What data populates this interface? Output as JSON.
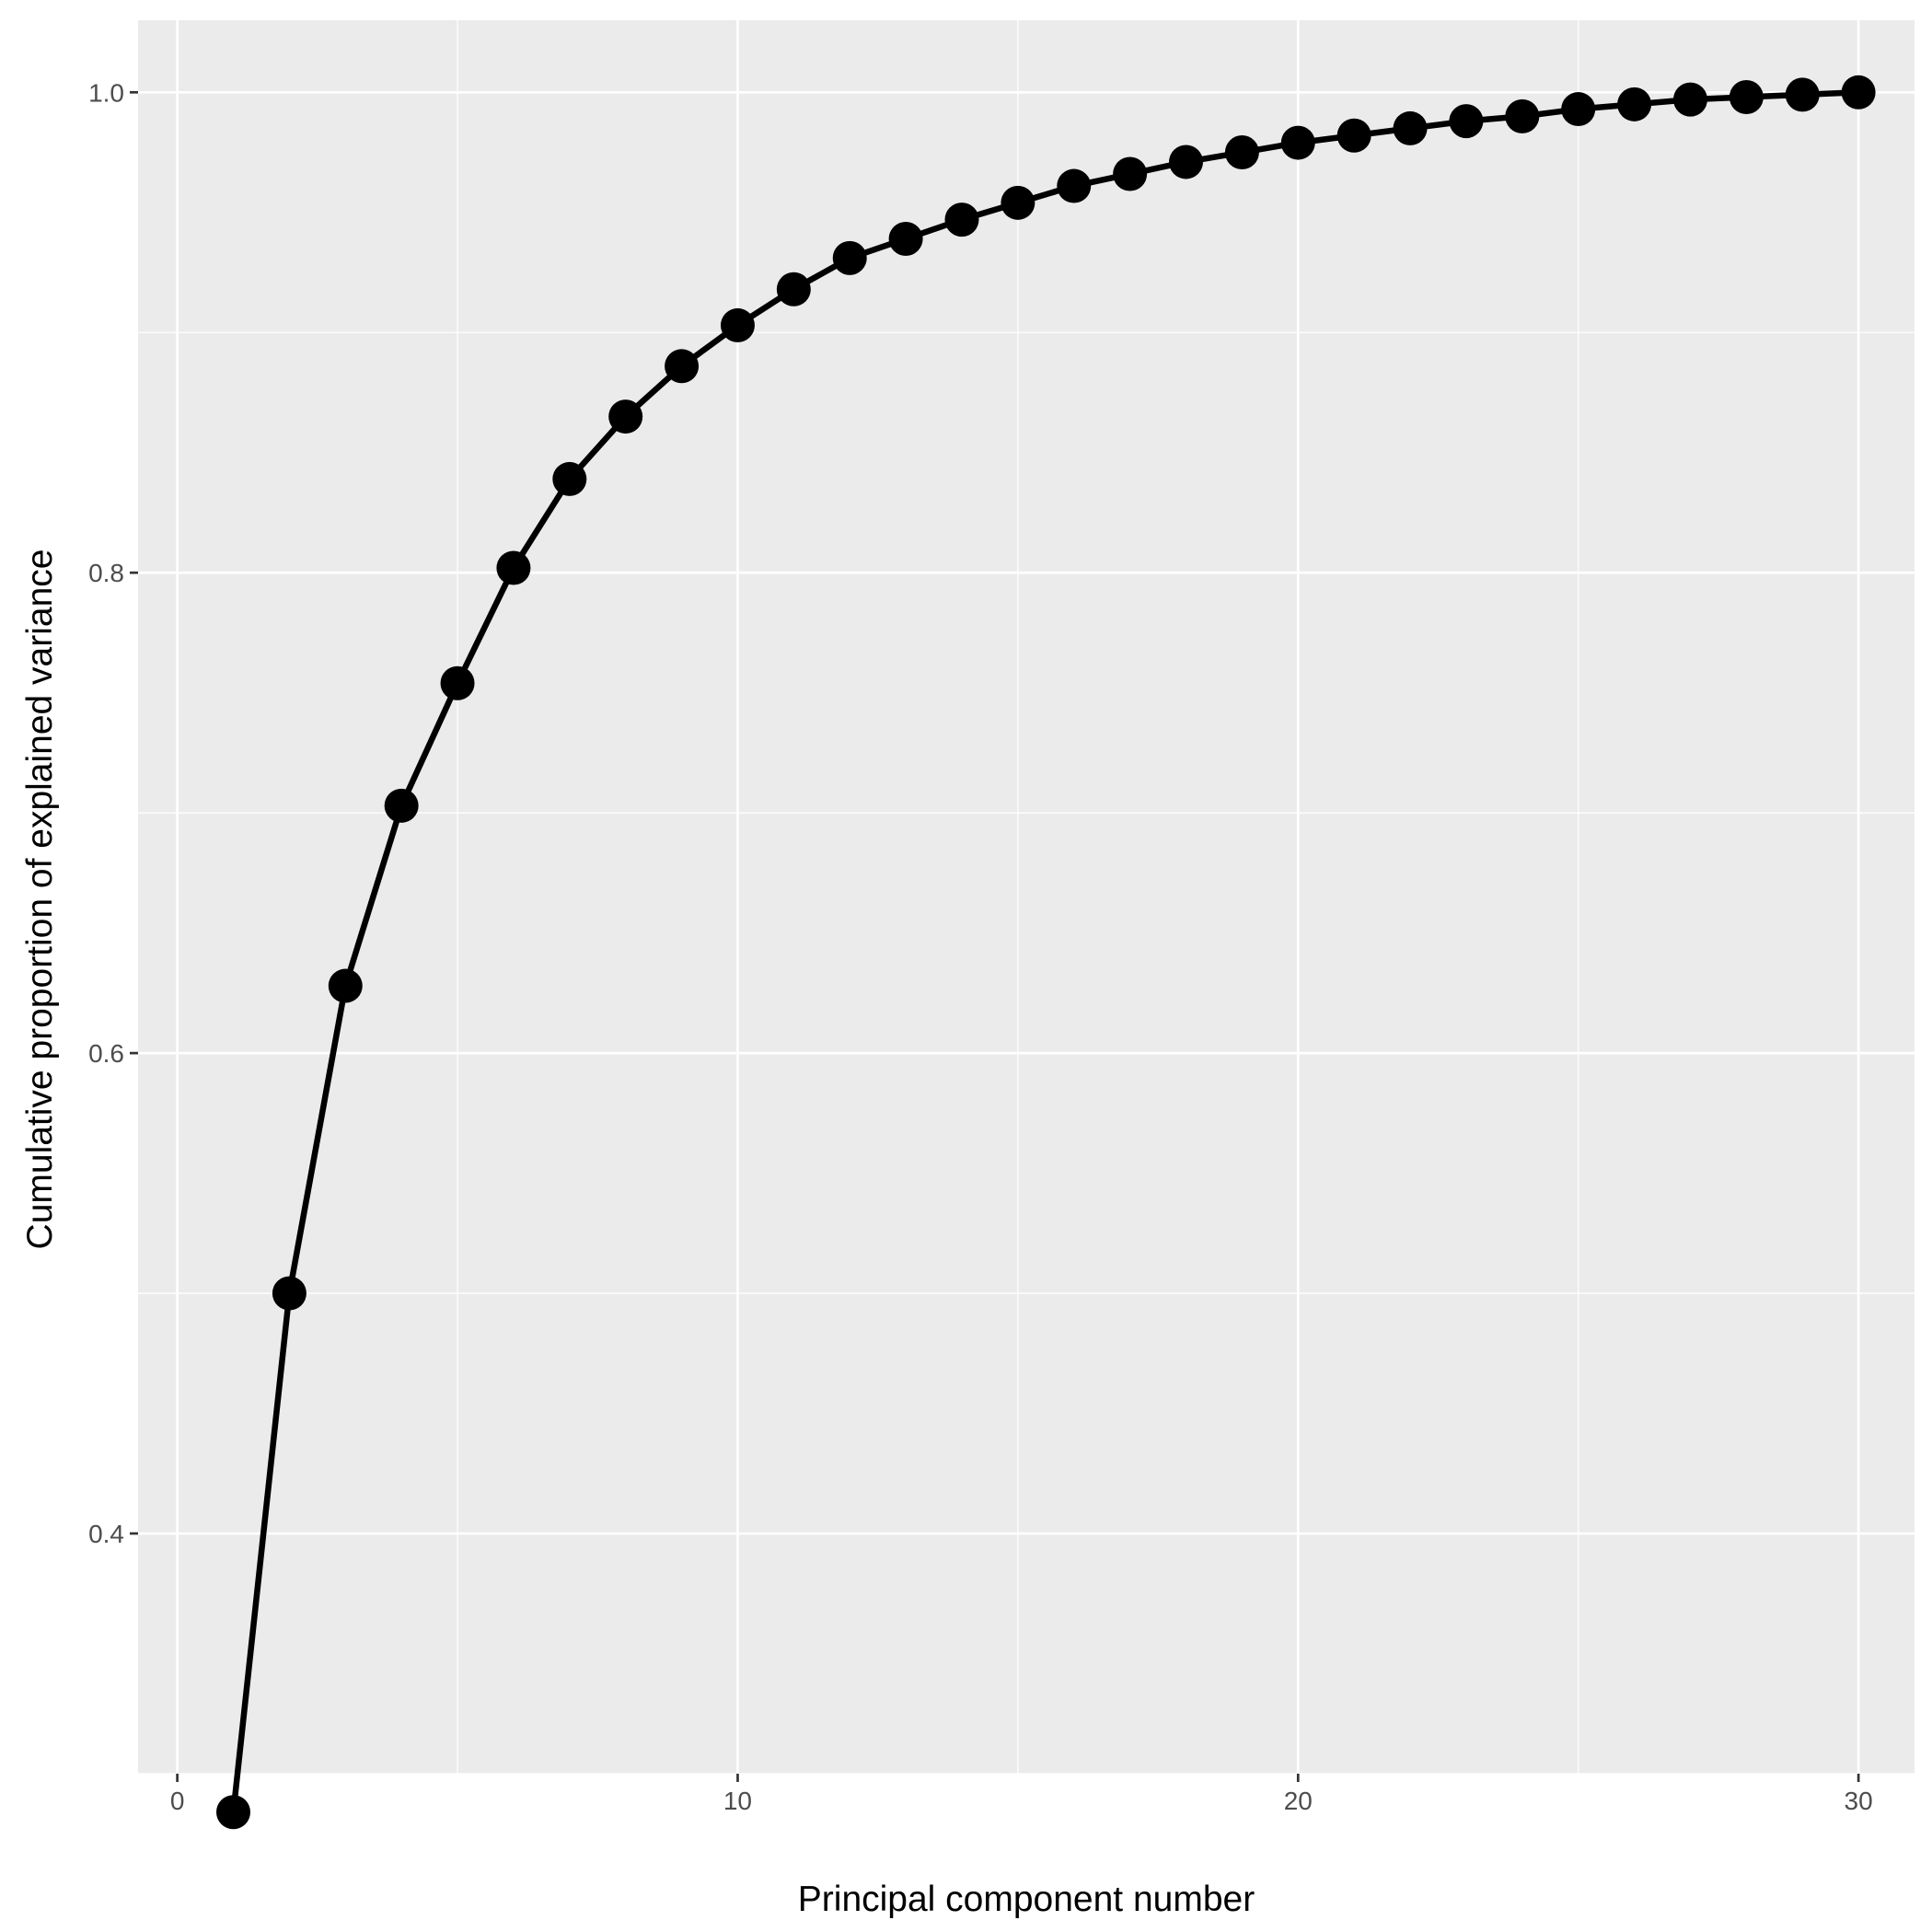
{
  "chart_data": {
    "type": "line",
    "title": "",
    "xlabel": "Principal component number",
    "ylabel": "Cumulative proportion of explained variance",
    "xlim": [
      -0.7,
      31.0
    ],
    "ylim": [
      0.3,
      1.03
    ],
    "x_ticks": [
      0,
      10,
      20,
      30
    ],
    "x_tick_labels": [
      "0",
      "10",
      "20",
      "30"
    ],
    "x_minor_ticks": [
      5,
      15,
      25
    ],
    "y_ticks": [
      0.4,
      0.6,
      0.8,
      1.0
    ],
    "y_tick_labels": [
      "0.4",
      "0.6",
      "0.8",
      "1.0"
    ],
    "y_minor_ticks": [
      0.3,
      0.5,
      0.7,
      0.9
    ],
    "grid": true,
    "panel_background": "#ebebeb",
    "grid_color": "#ffffff",
    "line_color": "#000000",
    "point_color": "#000000",
    "series": [
      {
        "x": [
          1,
          2,
          3,
          4,
          5,
          6,
          7,
          8,
          9,
          10,
          11,
          12,
          13,
          14,
          15,
          16,
          17,
          18,
          19,
          20,
          21,
          22,
          23,
          24,
          25,
          26,
          27,
          28,
          29,
          30
        ],
        "values": [
          0.284,
          0.5,
          0.628,
          0.703,
          0.754,
          0.802,
          0.839,
          0.865,
          0.886,
          0.903,
          0.918,
          0.931,
          0.939,
          0.947,
          0.954,
          0.961,
          0.966,
          0.971,
          0.975,
          0.979,
          0.982,
          0.985,
          0.988,
          0.99,
          0.993,
          0.995,
          0.997,
          0.998,
          0.999,
          1.0
        ]
      }
    ]
  }
}
